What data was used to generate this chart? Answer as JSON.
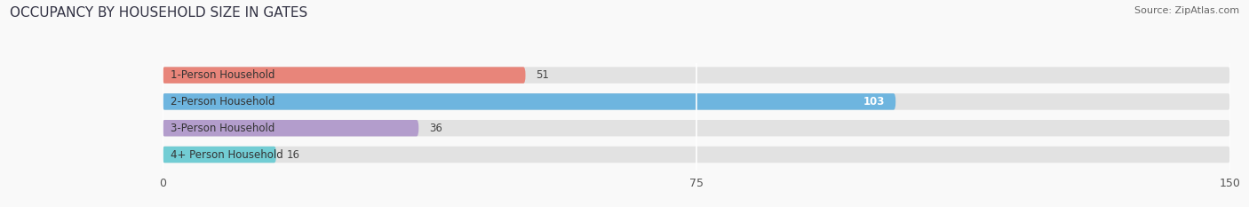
{
  "title": "OCCUPANCY BY HOUSEHOLD SIZE IN GATES",
  "source": "Source: ZipAtlas.com",
  "categories": [
    "1-Person Household",
    "2-Person Household",
    "3-Person Household",
    "4+ Person Household"
  ],
  "values": [
    51,
    103,
    36,
    16
  ],
  "bar_colors": [
    "#e8857a",
    "#6eb5df",
    "#b39dcc",
    "#72cdd4"
  ],
  "bar_bg_color": "#e8e8e8",
  "xlim": [
    0,
    150
  ],
  "xticks": [
    0,
    75,
    150
  ],
  "label_colors": [
    "#444444",
    "#ffffff",
    "#444444",
    "#444444"
  ],
  "background_color": "#f9f9f9",
  "title_color": "#333344",
  "source_color": "#666666",
  "bar_height": 0.62,
  "bar_bg_color_track": "#e2e2e2"
}
